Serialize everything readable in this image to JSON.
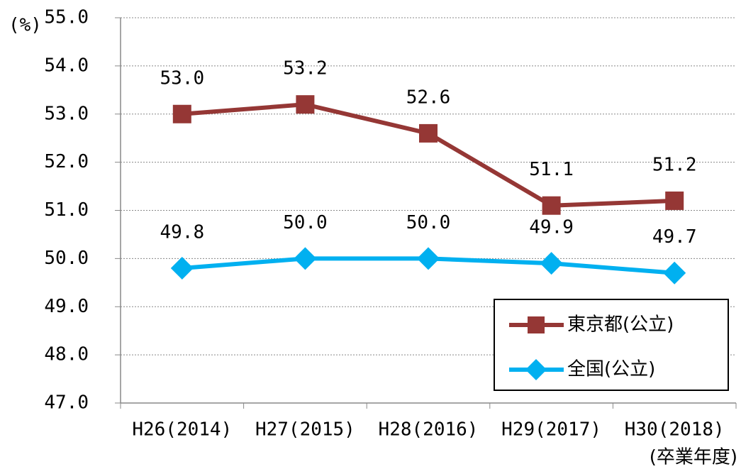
{
  "chart_data": {
    "type": "line",
    "y_label": "(%)",
    "x_label": "(卒業年度)",
    "categories": [
      "H26(2014)",
      "H27(2015)",
      "H28(2016)",
      "H29(2017)",
      "H30(2018)"
    ],
    "series": [
      {
        "name": "東京都(公立)",
        "color": "#953735",
        "marker": "square",
        "values": [
          53.0,
          53.2,
          52.6,
          51.1,
          51.2
        ],
        "value_labels": [
          "53.0",
          "53.2",
          "52.6",
          "51.1",
          "51.2"
        ]
      },
      {
        "name": "全国(公立)",
        "color": "#00b0f0",
        "marker": "diamond",
        "values": [
          49.8,
          50.0,
          50.0,
          49.9,
          49.7
        ],
        "value_labels": [
          "49.8",
          "50.0",
          "50.0",
          "49.9",
          "49.7"
        ]
      }
    ],
    "ylim": [
      47,
      55
    ],
    "yticks": [
      {
        "value": 47,
        "label": "47.0"
      },
      {
        "value": 48,
        "label": "48.0"
      },
      {
        "value": 49,
        "label": "49.0"
      },
      {
        "value": 50,
        "label": "50.0"
      },
      {
        "value": 51,
        "label": "51.0"
      },
      {
        "value": 52,
        "label": "52.0"
      },
      {
        "value": 53,
        "label": "53.0"
      },
      {
        "value": 54,
        "label": "54.0"
      },
      {
        "value": 55,
        "label": "55.0"
      }
    ],
    "grid": true,
    "legend": "lower right"
  }
}
